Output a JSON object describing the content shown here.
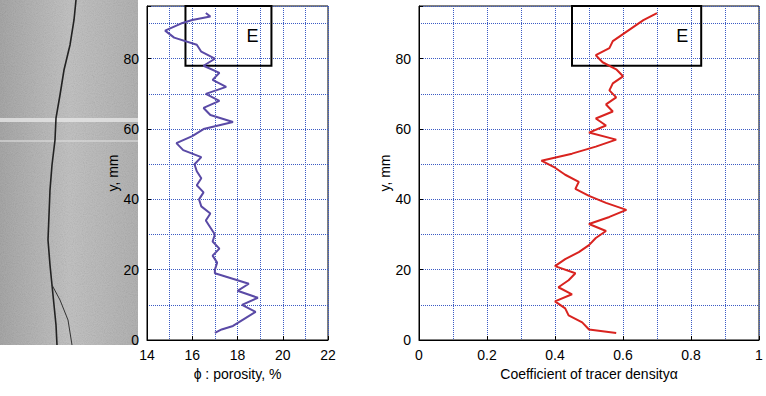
{
  "chart_data": [
    {
      "type": "line",
      "x_label": "ϕ : porosity, %",
      "y_label": "y, mm",
      "color": "#5a4aa6",
      "grid": true,
      "xlim": [
        14,
        22
      ],
      "xticks": [
        14,
        16,
        18,
        20,
        22
      ],
      "ylim": [
        0,
        95
      ],
      "yticks": [
        0,
        20,
        40,
        60,
        80
      ],
      "x": [
        17.0,
        17.3,
        17.8,
        18.3,
        18.8,
        18.2,
        18.9,
        18.0,
        18.5,
        17.5,
        17.0,
        17.0,
        17.1,
        16.9,
        17.2,
        16.9,
        17.0,
        16.8,
        16.6,
        16.8,
        16.4,
        16.3,
        16.5,
        16.2,
        16.4,
        16.2,
        16.1,
        16.4,
        15.6,
        15.3,
        16.0,
        16.5,
        17.8,
        16.8,
        16.5,
        17.2,
        16.6,
        17.5,
        16.9,
        17.2,
        16.5,
        17.0,
        16.4,
        16.2,
        15.2,
        14.8,
        15.5,
        16.0,
        16.8,
        16.6
      ],
      "values": [
        2,
        3,
        4,
        6,
        8,
        10,
        12,
        14,
        16,
        18,
        19,
        20,
        22,
        24,
        26,
        28,
        30,
        32,
        34,
        36,
        38,
        40,
        42,
        44,
        46,
        48,
        50,
        52,
        54,
        56,
        58,
        60,
        62,
        64,
        66,
        68,
        70,
        72,
        74,
        76,
        78,
        80,
        82,
        84,
        86,
        88,
        90,
        91,
        92,
        93
      ],
      "annotations": [
        {
          "text": "E",
          "x": [
            15.7,
            19.5
          ],
          "y": [
            78,
            95
          ]
        }
      ]
    },
    {
      "type": "line",
      "x_label": "Coefficient of tracer densityα",
      "y_label": "y, mm",
      "color": "#d9231f",
      "grid": true,
      "xlim": [
        0,
        1
      ],
      "xticks": [
        0,
        0.2,
        0.4,
        0.6,
        0.8,
        1
      ],
      "ylim": [
        0,
        95
      ],
      "yticks": [
        0,
        20,
        40,
        60,
        80
      ],
      "x": [
        0.58,
        0.5,
        0.48,
        0.44,
        0.43,
        0.4,
        0.45,
        0.41,
        0.44,
        0.46,
        0.4,
        0.43,
        0.47,
        0.5,
        0.52,
        0.55,
        0.5,
        0.56,
        0.61,
        0.55,
        0.5,
        0.46,
        0.47,
        0.43,
        0.4,
        0.36,
        0.45,
        0.52,
        0.58,
        0.5,
        0.55,
        0.52,
        0.57,
        0.55,
        0.58,
        0.56,
        0.57,
        0.6,
        0.58,
        0.54,
        0.52,
        0.56,
        0.57,
        0.6,
        0.63,
        0.66,
        0.7
      ],
      "values": [
        2,
        3,
        5,
        7,
        9,
        11,
        13,
        15,
        17,
        19,
        21,
        23,
        25,
        27,
        29,
        31,
        33,
        35,
        37,
        39,
        41,
        43,
        45,
        47,
        49,
        51,
        53,
        55,
        57,
        59,
        61,
        63,
        65,
        67,
        69,
        71,
        73,
        75,
        77,
        79,
        81,
        83,
        85,
        87,
        89,
        91,
        93
      ],
      "annotations": [
        {
          "text": "E",
          "x": [
            0.45,
            0.83
          ],
          "y": [
            78,
            95
          ]
        }
      ]
    }
  ]
}
